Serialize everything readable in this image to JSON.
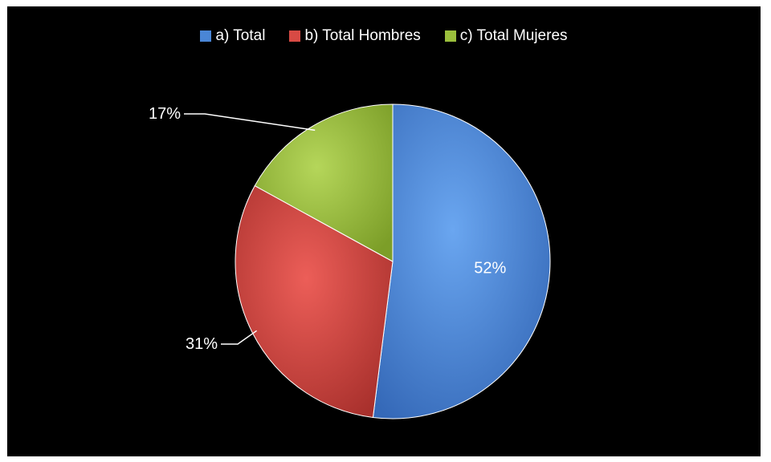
{
  "chart_data": {
    "type": "pie",
    "title": "",
    "legend_position": "top",
    "categories": [
      "a) Total",
      "b) Total Hombres",
      "c) Total Mujeres"
    ],
    "values": [
      52,
      31,
      17
    ],
    "labels": [
      "52%",
      "31%",
      "17%"
    ],
    "colors": [
      "#4a86d6",
      "#d84a44",
      "#9bbf3c"
    ],
    "background": "#000000"
  }
}
